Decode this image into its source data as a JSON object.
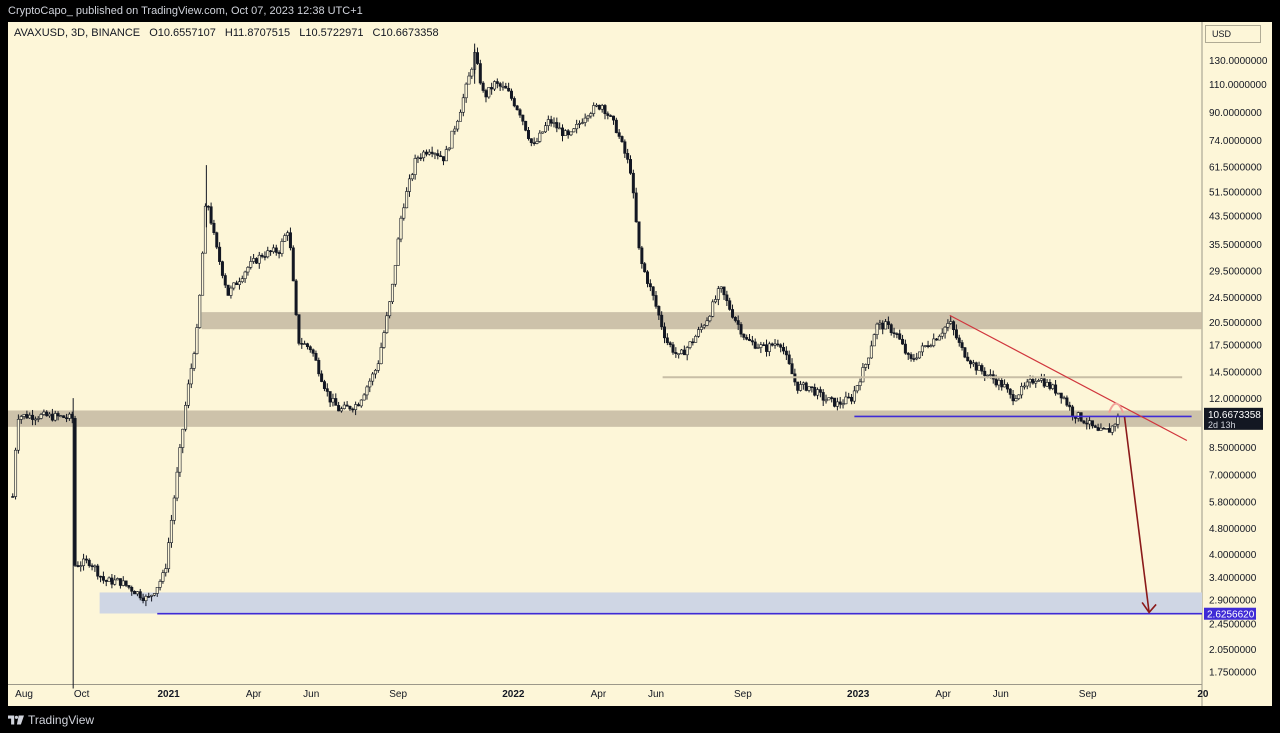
{
  "header": {
    "publish_line": "CryptoCapo_ published on TradingView.com, Oct 07, 2023 12:38 UTC+1"
  },
  "footer": {
    "brand": "TradingView"
  },
  "legend": {
    "symbol": "AVAXUSD, 3D, BINANCE",
    "open": "O10.6557107",
    "high": "H11.8707515",
    "low": "L10.5722971",
    "close": "C10.6673358"
  },
  "price_scale": {
    "currency": "USD",
    "labels": [
      "130.0000000",
      "110.0000000",
      "90.0000000",
      "74.0000000",
      "61.5000000",
      "51.5000000",
      "43.5000000",
      "35.5000000",
      "29.5000000",
      "24.5000000",
      "20.5000000",
      "17.5000000",
      "14.5000000",
      "12.0000000",
      "8.5000000",
      "7.0000000",
      "5.8000000",
      "4.8000000",
      "4.0000000",
      "3.4000000",
      "2.9000000",
      "2.4500000",
      "2.0500000",
      "1.7500000"
    ],
    "current_price_label": "10.6673358",
    "countdown_label": "2d 13h",
    "target_price_label": "2.6256620"
  },
  "time_scale": {
    "labels": [
      "Aug",
      "Oct",
      "2021",
      "Apr",
      "Jun",
      "Sep",
      "2022",
      "Apr",
      "Jun",
      "Sep",
      "2023",
      "Apr",
      "Jun",
      "Sep",
      "20"
    ]
  },
  "colors": {
    "background": "#fdf6d8",
    "candle": "#131722",
    "zone_gray": "#c4b9a2",
    "zone_blue": "#cfd6e4",
    "support_line": "#3f2bd6",
    "trendline": "#d0363d",
    "projection_arrow": "#8b1a1a",
    "current_price_badge": "#131722",
    "target_price_badge": "#3f2bd6"
  },
  "chart_data": {
    "type": "candlestick",
    "symbol": "AVAXUSD",
    "interval": "3D",
    "exchange": "BINANCE",
    "y_scale": "log",
    "ylim": [
      1.6,
      170
    ],
    "xlim": [
      "2020-07-15",
      "2023-12-31"
    ],
    "grid": false,
    "legend_position": "top-left",
    "price_path": [
      [
        "2020-07-20",
        6.0
      ],
      [
        "2020-07-25",
        10.6
      ],
      [
        "2020-08-15",
        10.6
      ],
      [
        "2020-09-10",
        10.5
      ],
      [
        "2020-09-22",
        10.4
      ],
      [
        "2020-09-24",
        3.7
      ],
      [
        "2020-10-10",
        3.8
      ],
      [
        "2020-10-25",
        3.3
      ],
      [
        "2020-11-10",
        3.3
      ],
      [
        "2020-11-25",
        3.1
      ],
      [
        "2020-12-10",
        2.9
      ],
      [
        "2020-12-20",
        3.2
      ],
      [
        "2020-12-28",
        3.5
      ],
      [
        "2021-01-10",
        7.0
      ],
      [
        "2021-01-20",
        12.0
      ],
      [
        "2021-02-01",
        20.0
      ],
      [
        "2021-02-10",
        50.0
      ],
      [
        "2021-02-20",
        35.0
      ],
      [
        "2021-03-05",
        25.0
      ],
      [
        "2021-03-25",
        30.0
      ],
      [
        "2021-04-10",
        33.0
      ],
      [
        "2021-04-28",
        34.0
      ],
      [
        "2021-05-08",
        40.0
      ],
      [
        "2021-05-18",
        18.0
      ],
      [
        "2021-06-01",
        17.0
      ],
      [
        "2021-06-20",
        12.0
      ],
      [
        "2021-07-01",
        11.0
      ],
      [
        "2021-07-20",
        11.5
      ],
      [
        "2021-08-10",
        15.0
      ],
      [
        "2021-08-25",
        25.0
      ],
      [
        "2021-09-05",
        45.0
      ],
      [
        "2021-09-20",
        65.0
      ],
      [
        "2021-10-05",
        70.0
      ],
      [
        "2021-10-20",
        65.0
      ],
      [
        "2021-11-05",
        90.0
      ],
      [
        "2021-11-15",
        115.0
      ],
      [
        "2021-11-21",
        135.0
      ],
      [
        "2021-12-01",
        100.0
      ],
      [
        "2021-12-12",
        110.0
      ],
      [
        "2021-12-25",
        105.0
      ],
      [
        "2022-01-08",
        90.0
      ],
      [
        "2022-01-22",
        70.0
      ],
      [
        "2022-02-08",
        85.0
      ],
      [
        "2022-03-01",
        75.0
      ],
      [
        "2022-03-20",
        90.0
      ],
      [
        "2022-04-05",
        95.0
      ],
      [
        "2022-04-20",
        80.0
      ],
      [
        "2022-05-05",
        60.0
      ],
      [
        "2022-05-15",
        32.0
      ],
      [
        "2022-05-28",
        25.0
      ],
      [
        "2022-06-12",
        18.0
      ],
      [
        "2022-06-25",
        16.0
      ],
      [
        "2022-07-10",
        18.0
      ],
      [
        "2022-07-25",
        21.0
      ],
      [
        "2022-08-08",
        26.0
      ],
      [
        "2022-08-20",
        22.0
      ],
      [
        "2022-09-05",
        18.0
      ],
      [
        "2022-09-25",
        17.0
      ],
      [
        "2022-10-10",
        18.0
      ],
      [
        "2022-10-28",
        13.0
      ],
      [
        "2022-11-10",
        13.0
      ],
      [
        "2022-11-25",
        12.0
      ],
      [
        "2022-12-10",
        11.5
      ],
      [
        "2022-12-25",
        12.0
      ],
      [
        "2023-01-10",
        15.5
      ],
      [
        "2023-01-20",
        20.0
      ],
      [
        "2023-01-30",
        20.0
      ],
      [
        "2023-02-10",
        19.0
      ],
      [
        "2023-02-25",
        15.5
      ],
      [
        "2023-03-10",
        17.0
      ],
      [
        "2023-03-25",
        18.5
      ],
      [
        "2023-04-08",
        20.5
      ],
      [
        "2023-04-20",
        17.0
      ],
      [
        "2023-05-05",
        15.0
      ],
      [
        "2023-05-20",
        14.0
      ],
      [
        "2023-06-05",
        13.0
      ],
      [
        "2023-06-12",
        12.0
      ],
      [
        "2023-06-25",
        12.8
      ],
      [
        "2023-07-10",
        14.0
      ],
      [
        "2023-07-20",
        13.2
      ],
      [
        "2023-08-05",
        12.3
      ],
      [
        "2023-08-16",
        10.8
      ],
      [
        "2023-08-30",
        10.2
      ],
      [
        "2023-09-12",
        9.4
      ],
      [
        "2023-09-25",
        9.6
      ],
      [
        "2023-10-05",
        10.67
      ]
    ],
    "spikes": [
      {
        "date": "2020-09-22",
        "high": 12.0,
        "low": 1.55
      },
      {
        "date": "2021-02-10",
        "high": 62.0,
        "low": 40.0
      },
      {
        "date": "2021-11-21",
        "high": 146.0,
        "low": 110.0
      }
    ],
    "annotations": {
      "zones": [
        {
          "start": "2021-02-05",
          "end": "2023-12-31",
          "low": 19.5,
          "high": 22.0,
          "color": "gray"
        },
        {
          "start": "2020-07-15",
          "end": "2023-12-31",
          "low": 9.8,
          "high": 11.0,
          "color": "gray"
        },
        {
          "start": "2020-10-20",
          "end": "2023-12-31",
          "low": 2.63,
          "high": 3.05,
          "color": "blue"
        }
      ],
      "horizontal_lines": [
        {
          "start": "2022-06-08",
          "end": "2023-12-10",
          "price": 13.9,
          "color": "tan"
        },
        {
          "start": "2022-12-28",
          "end": "2023-12-20",
          "price": 10.55,
          "color": "blue"
        },
        {
          "start": "2020-12-20",
          "end": "2023-12-31",
          "price": 2.625662,
          "color": "blue"
        }
      ],
      "trendline": {
        "start": [
          "2023-04-08",
          21.5
        ],
        "end": [
          "2023-12-15",
          8.9
        ]
      },
      "projection_arrow": {
        "start": [
          "2023-10-10",
          10.5
        ],
        "end": [
          "2023-11-05",
          2.65
        ]
      }
    }
  }
}
